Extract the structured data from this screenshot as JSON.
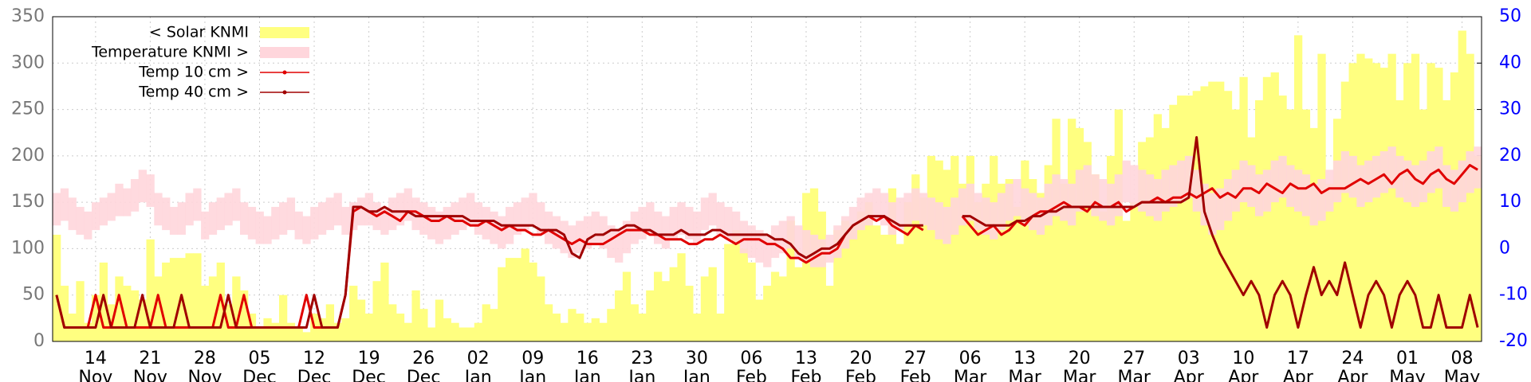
{
  "chart_data": {
    "type": "combo",
    "x": [
      "09 Nov",
      "10 Nov",
      "11 Nov",
      "12 Nov",
      "13 Nov",
      "14 Nov",
      "15 Nov",
      "16 Nov",
      "17 Nov",
      "18 Nov",
      "19 Nov",
      "20 Nov",
      "21 Nov",
      "22 Nov",
      "23 Nov",
      "24 Nov",
      "25 Nov",
      "26 Nov",
      "27 Nov",
      "28 Nov",
      "29 Nov",
      "30 Nov",
      "01 Dec",
      "02 Dec",
      "03 Dec",
      "04 Dec",
      "05 Dec",
      "06 Dec",
      "07 Dec",
      "08 Dec",
      "09 Dec",
      "10 Dec",
      "11 Dec",
      "12 Dec",
      "13 Dec",
      "14 Dec",
      "15 Dec",
      "16 Dec",
      "17 Dec",
      "18 Dec",
      "19 Dec",
      "20 Dec",
      "21 Dec",
      "22 Dec",
      "23 Dec",
      "24 Dec",
      "25 Dec",
      "26 Dec",
      "27 Dec",
      "28 Dec",
      "29 Dec",
      "30 Dec",
      "31 Dec",
      "01 Jan",
      "02 Jan",
      "03 Jan",
      "04 Jan",
      "05 Jan",
      "06 Jan",
      "07 Jan",
      "08 Jan",
      "09 Jan",
      "10 Jan",
      "11 Jan",
      "12 Jan",
      "13 Jan",
      "14 Jan",
      "15 Jan",
      "16 Jan",
      "17 Jan",
      "18 Jan",
      "19 Jan",
      "20 Jan",
      "21 Jan",
      "22 Jan",
      "23 Jan",
      "24 Jan",
      "25 Jan",
      "26 Jan",
      "27 Jan",
      "28 Jan",
      "29 Jan",
      "30 Jan",
      "31 Jan",
      "01 Feb",
      "02 Feb",
      "03 Feb",
      "04 Feb",
      "05 Feb",
      "06 Feb",
      "07 Feb",
      "08 Feb",
      "09 Feb",
      "10 Feb",
      "11 Feb",
      "12 Feb",
      "13 Feb",
      "14 Feb",
      "15 Feb",
      "16 Feb",
      "17 Feb",
      "18 Feb",
      "19 Feb",
      "20 Feb",
      "21 Feb",
      "22 Feb",
      "23 Feb",
      "24 Feb",
      "25 Feb",
      "26 Feb",
      "27 Feb",
      "28 Feb",
      "01 Mar",
      "02 Mar",
      "03 Mar",
      "04 Mar",
      "05 Mar",
      "06 Mar",
      "07 Mar",
      "08 Mar",
      "09 Mar",
      "10 Mar",
      "11 Mar",
      "12 Mar",
      "13 Mar",
      "14 Mar",
      "15 Mar",
      "16 Mar",
      "17 Mar",
      "18 Mar",
      "19 Mar",
      "20 Mar",
      "21 Mar",
      "22 Mar",
      "23 Mar",
      "24 Mar",
      "25 Mar",
      "26 Mar",
      "27 Mar",
      "28 Mar",
      "29 Mar",
      "30 Mar",
      "31 Mar",
      "01 Apr",
      "02 Apr",
      "03 Apr",
      "04 Apr",
      "05 Apr",
      "06 Apr",
      "07 Apr",
      "08 Apr",
      "09 Apr",
      "10 Apr",
      "11 Apr",
      "12 Apr",
      "13 Apr",
      "14 Apr",
      "15 Apr",
      "16 Apr",
      "17 Apr",
      "18 Apr",
      "19 Apr",
      "20 Apr",
      "21 Apr",
      "22 Apr",
      "23 Apr",
      "24 Apr",
      "25 Apr",
      "26 Apr",
      "27 Apr",
      "28 Apr",
      "29 Apr",
      "30 Apr",
      "01 May",
      "02 May",
      "03 May",
      "04 May",
      "05 May",
      "06 May",
      "07 May",
      "08 May",
      "09 May",
      "10 May"
    ],
    "series": [
      {
        "name": "< Solar KNMI",
        "type": "bar",
        "color": "#ffff80",
        "values": [
          115,
          60,
          30,
          65,
          20,
          50,
          85,
          40,
          70,
          60,
          55,
          45,
          110,
          70,
          85,
          90,
          90,
          95,
          95,
          60,
          70,
          85,
          40,
          70,
          55,
          30,
          15,
          25,
          20,
          50,
          20,
          15,
          10,
          30,
          25,
          40,
          20,
          25,
          60,
          45,
          30,
          65,
          85,
          40,
          30,
          20,
          55,
          35,
          15,
          45,
          25,
          20,
          15,
          15,
          20,
          40,
          35,
          80,
          90,
          90,
          100,
          85,
          70,
          40,
          30,
          20,
          35,
          30,
          20,
          25,
          20,
          35,
          55,
          75,
          40,
          30,
          55,
          75,
          65,
          80,
          95,
          60,
          30,
          70,
          80,
          30,
          105,
          120,
          100,
          85,
          45,
          60,
          75,
          70,
          130,
          80,
          160,
          165,
          140,
          60,
          120,
          130,
          125,
          140,
          150,
          125,
          115,
          165,
          105,
          150,
          180,
          155,
          200,
          195,
          185,
          200,
          170,
          200,
          150,
          170,
          200,
          170,
          175,
          145,
          195,
          175,
          160,
          190,
          240,
          170,
          240,
          230,
          215,
          180,
          140,
          200,
          250,
          130,
          150,
          215,
          220,
          245,
          230,
          255,
          265,
          265,
          270,
          275,
          280,
          280,
          270,
          250,
          285,
          220,
          260,
          285,
          290,
          265,
          250,
          330,
          250,
          230,
          310,
          170,
          240,
          280,
          300,
          310,
          305,
          300,
          295,
          310,
          260,
          300,
          310,
          250,
          300,
          295,
          260,
          290,
          335,
          310,
          200
        ]
      },
      {
        "name": "Temperature KNMI >",
        "type": "band",
        "axis": "y2",
        "color": "#ffd6dc",
        "min": [
          5,
          6,
          4,
          3,
          2,
          4,
          5,
          6,
          7,
          7,
          8,
          10,
          9,
          5,
          4,
          3,
          3,
          5,
          6,
          2,
          3,
          4,
          5,
          6,
          3,
          2,
          1,
          1,
          2,
          3,
          4,
          2,
          1,
          2,
          3,
          4,
          5,
          3,
          4,
          5,
          5,
          4,
          3,
          4,
          5,
          6,
          4,
          3,
          2,
          1,
          2,
          3,
          4,
          5,
          3,
          2,
          1,
          0,
          1,
          3,
          4,
          5,
          3,
          1,
          0,
          -1,
          -2,
          -1,
          0,
          1,
          0,
          -2,
          -3,
          -1,
          1,
          2,
          3,
          1,
          0,
          2,
          3,
          2,
          1,
          4,
          5,
          3,
          2,
          1,
          -1,
          -2,
          -3,
          -4,
          -2,
          -1,
          0,
          -2,
          -3,
          -4,
          -4,
          -3,
          -2,
          0,
          2,
          4,
          5,
          6,
          5,
          3,
          4,
          5,
          6,
          5,
          4,
          2,
          1,
          3,
          5,
          6,
          4,
          3,
          2,
          4,
          6,
          7,
          5,
          4,
          3,
          5,
          7,
          6,
          5,
          8,
          9,
          7,
          6,
          5,
          7,
          10,
          9,
          8,
          7,
          6,
          8,
          9,
          10,
          11,
          8,
          5,
          3,
          4,
          6,
          8,
          10,
          9,
          7,
          8,
          10,
          11,
          9,
          8,
          7,
          5,
          6,
          8,
          10,
          12,
          11,
          9,
          10,
          11,
          12,
          13,
          11,
          10,
          9,
          10,
          12,
          13,
          9,
          8,
          10,
          12,
          13
        ],
        "max": [
          12,
          13,
          11,
          9,
          8,
          10,
          11,
          12,
          14,
          13,
          15,
          17,
          16,
          12,
          11,
          9,
          10,
          12,
          13,
          8,
          10,
          11,
          12,
          13,
          10,
          9,
          8,
          7,
          9,
          10,
          11,
          8,
          7,
          9,
          10,
          11,
          12,
          9,
          10,
          11,
          12,
          10,
          9,
          11,
          12,
          13,
          11,
          10,
          9,
          8,
          9,
          10,
          11,
          12,
          10,
          9,
          8,
          7,
          9,
          10,
          11,
          12,
          10,
          8,
          7,
          6,
          5,
          6,
          7,
          8,
          7,
          5,
          4,
          6,
          8,
          9,
          10,
          8,
          7,
          9,
          10,
          9,
          8,
          11,
          12,
          10,
          9,
          8,
          6,
          5,
          4,
          3,
          5,
          6,
          7,
          5,
          4,
          3,
          2,
          3,
          5,
          7,
          9,
          11,
          12,
          13,
          12,
          10,
          11,
          12,
          13,
          12,
          11,
          10,
          9,
          11,
          13,
          14,
          12,
          11,
          10,
          12,
          14,
          15,
          13,
          12,
          11,
          14,
          16,
          15,
          14,
          17,
          18,
          16,
          15,
          14,
          16,
          19,
          18,
          17,
          16,
          15,
          17,
          18,
          19,
          20,
          17,
          14,
          12,
          13,
          15,
          17,
          19,
          18,
          16,
          17,
          19,
          20,
          18,
          17,
          16,
          14,
          15,
          17,
          19,
          21,
          20,
          18,
          19,
          20,
          21,
          22,
          20,
          19,
          18,
          19,
          21,
          22,
          18,
          17,
          19,
          21,
          22
        ]
      },
      {
        "name": "Temp 10 cm >",
        "type": "line",
        "axis": "y2",
        "color": "#e00000",
        "values": [
          -10,
          -17,
          -17,
          -17,
          -17,
          -10,
          -17,
          -17,
          -10,
          -17,
          -17,
          -17,
          -17,
          -10,
          -17,
          -17,
          -17,
          -17,
          -17,
          -17,
          -17,
          -10,
          -17,
          -17,
          -10,
          -17,
          -17,
          -17,
          -17,
          -17,
          -17,
          -17,
          -10,
          -17,
          -17,
          -17,
          -17,
          -10,
          8,
          9,
          8,
          7,
          8,
          7,
          6,
          8,
          8,
          7,
          6,
          6,
          7,
          6,
          6,
          5,
          5,
          6,
          5,
          4,
          5,
          4,
          4,
          3,
          3,
          4,
          3,
          2,
          1,
          2,
          1,
          1,
          1,
          2,
          3,
          4,
          4,
          4,
          3,
          3,
          2,
          2,
          2,
          1,
          1,
          2,
          2,
          3,
          2,
          1,
          2,
          2,
          2,
          1,
          1,
          0,
          -2,
          -2,
          -3,
          -2,
          -1,
          -1,
          0,
          3,
          5,
          6,
          7,
          6,
          7,
          5,
          4,
          3,
          5,
          4,
          null,
          null,
          null,
          null,
          7,
          5,
          3,
          4,
          5,
          3,
          4,
          6,
          5,
          7,
          8,
          8,
          9,
          10,
          9,
          9,
          8,
          10,
          9,
          9,
          10,
          8,
          9,
          10,
          10,
          11,
          10,
          11,
          11,
          12,
          11,
          12,
          13,
          11,
          12,
          11,
          13,
          13,
          12,
          14,
          13,
          12,
          14,
          13,
          13,
          14,
          12,
          13,
          13,
          13,
          14,
          15,
          14,
          15,
          16,
          14,
          16,
          17,
          15,
          14,
          16,
          17,
          15,
          14,
          16,
          18,
          17
        ]
      },
      {
        "name": "Temp 40 cm >",
        "type": "line",
        "axis": "y2",
        "color": "#a00000",
        "values": [
          -10,
          -17,
          -17,
          -17,
          -17,
          -17,
          -10,
          -17,
          -17,
          -17,
          -17,
          -10,
          -17,
          -17,
          -17,
          -17,
          -10,
          -17,
          -17,
          -17,
          -17,
          -17,
          -10,
          -17,
          -17,
          -17,
          -17,
          -17,
          -17,
          -17,
          -17,
          -17,
          -17,
          -10,
          -17,
          -17,
          -17,
          -10,
          9,
          9,
          8,
          8,
          9,
          8,
          8,
          8,
          7,
          7,
          7,
          7,
          7,
          7,
          7,
          6,
          6,
          6,
          6,
          5,
          5,
          5,
          5,
          5,
          4,
          4,
          4,
          3,
          -1,
          -2,
          2,
          3,
          3,
          4,
          4,
          5,
          5,
          4,
          4,
          3,
          3,
          3,
          4,
          3,
          3,
          3,
          4,
          4,
          3,
          3,
          3,
          3,
          3,
          3,
          2,
          2,
          1,
          -1,
          -2,
          -1,
          0,
          0,
          1,
          3,
          5,
          6,
          7,
          7,
          7,
          6,
          5,
          5,
          5,
          5,
          null,
          null,
          null,
          null,
          7,
          7,
          6,
          5,
          5,
          5,
          5,
          6,
          6,
          7,
          7,
          8,
          8,
          9,
          9,
          9,
          9,
          9,
          9,
          9,
          9,
          9,
          9,
          10,
          10,
          10,
          10,
          10,
          10,
          11,
          24,
          8,
          3,
          -1,
          -4,
          -7,
          -10,
          -7,
          -10,
          -17,
          -10,
          -7,
          -10,
          -17,
          -10,
          -4,
          -10,
          -7,
          -10,
          -3,
          -10,
          -17,
          -10,
          -7,
          -10,
          -17,
          -10,
          -7,
          -10,
          -17,
          -17,
          -10,
          -17,
          -17,
          -17,
          -10,
          -17
        ]
      }
    ],
    "ylim": [
      0,
      350
    ],
    "yticks": [
      0,
      50,
      100,
      150,
      200,
      250,
      300,
      350
    ],
    "y2lim": [
      -20,
      50
    ],
    "y2ticks": [
      -20,
      -10,
      0,
      10,
      20,
      30,
      40,
      50
    ],
    "xticks": [
      {
        "value": "14 Nov",
        "label": [
          "14",
          "Nov"
        ]
      },
      {
        "value": "21 Nov",
        "label": [
          "21",
          "Nov"
        ]
      },
      {
        "value": "28 Nov",
        "label": [
          "28",
          "Nov"
        ]
      },
      {
        "value": "05 Dec",
        "label": [
          "05",
          "Dec"
        ]
      },
      {
        "value": "12 Dec",
        "label": [
          "12",
          "Dec"
        ]
      },
      {
        "value": "19 Dec",
        "label": [
          "19",
          "Dec"
        ]
      },
      {
        "value": "26 Dec",
        "label": [
          "26",
          "Dec"
        ]
      },
      {
        "value": "02 Jan",
        "label": [
          "02",
          "Jan"
        ]
      },
      {
        "value": "09 Jan",
        "label": [
          "09",
          "Jan"
        ]
      },
      {
        "value": "16 Jan",
        "label": [
          "16",
          "Jan"
        ]
      },
      {
        "value": "23 Jan",
        "label": [
          "23",
          "Jan"
        ]
      },
      {
        "value": "30 Jan",
        "label": [
          "30",
          "Jan"
        ]
      },
      {
        "value": "06 Feb",
        "label": [
          "06",
          "Feb"
        ]
      },
      {
        "value": "13 Feb",
        "label": [
          "13",
          "Feb"
        ]
      },
      {
        "value": "20 Feb",
        "label": [
          "20",
          "Feb"
        ]
      },
      {
        "value": "27 Feb",
        "label": [
          "27",
          "Feb"
        ]
      },
      {
        "value": "06 Mar",
        "label": [
          "06",
          "Mar"
        ]
      },
      {
        "value": "13 Mar",
        "label": [
          "13",
          "Mar"
        ]
      },
      {
        "value": "20 Mar",
        "label": [
          "20",
          "Mar"
        ]
      },
      {
        "value": "27 Mar",
        "label": [
          "27",
          "Mar"
        ]
      },
      {
        "value": "03 Apr",
        "label": [
          "03",
          "Apr"
        ]
      },
      {
        "value": "10 Apr",
        "label": [
          "10",
          "Apr"
        ]
      },
      {
        "value": "17 Apr",
        "label": [
          "17",
          "Apr"
        ]
      },
      {
        "value": "24 Apr",
        "label": [
          "24",
          "Apr"
        ]
      },
      {
        "value": "01 May",
        "label": [
          "01",
          "May"
        ]
      },
      {
        "value": "08 May",
        "label": [
          "08",
          "May"
        ]
      }
    ],
    "grid": true,
    "legend": "top-left",
    "y_tick_color": "#777777",
    "y2_tick_color": "#0000ff"
  }
}
